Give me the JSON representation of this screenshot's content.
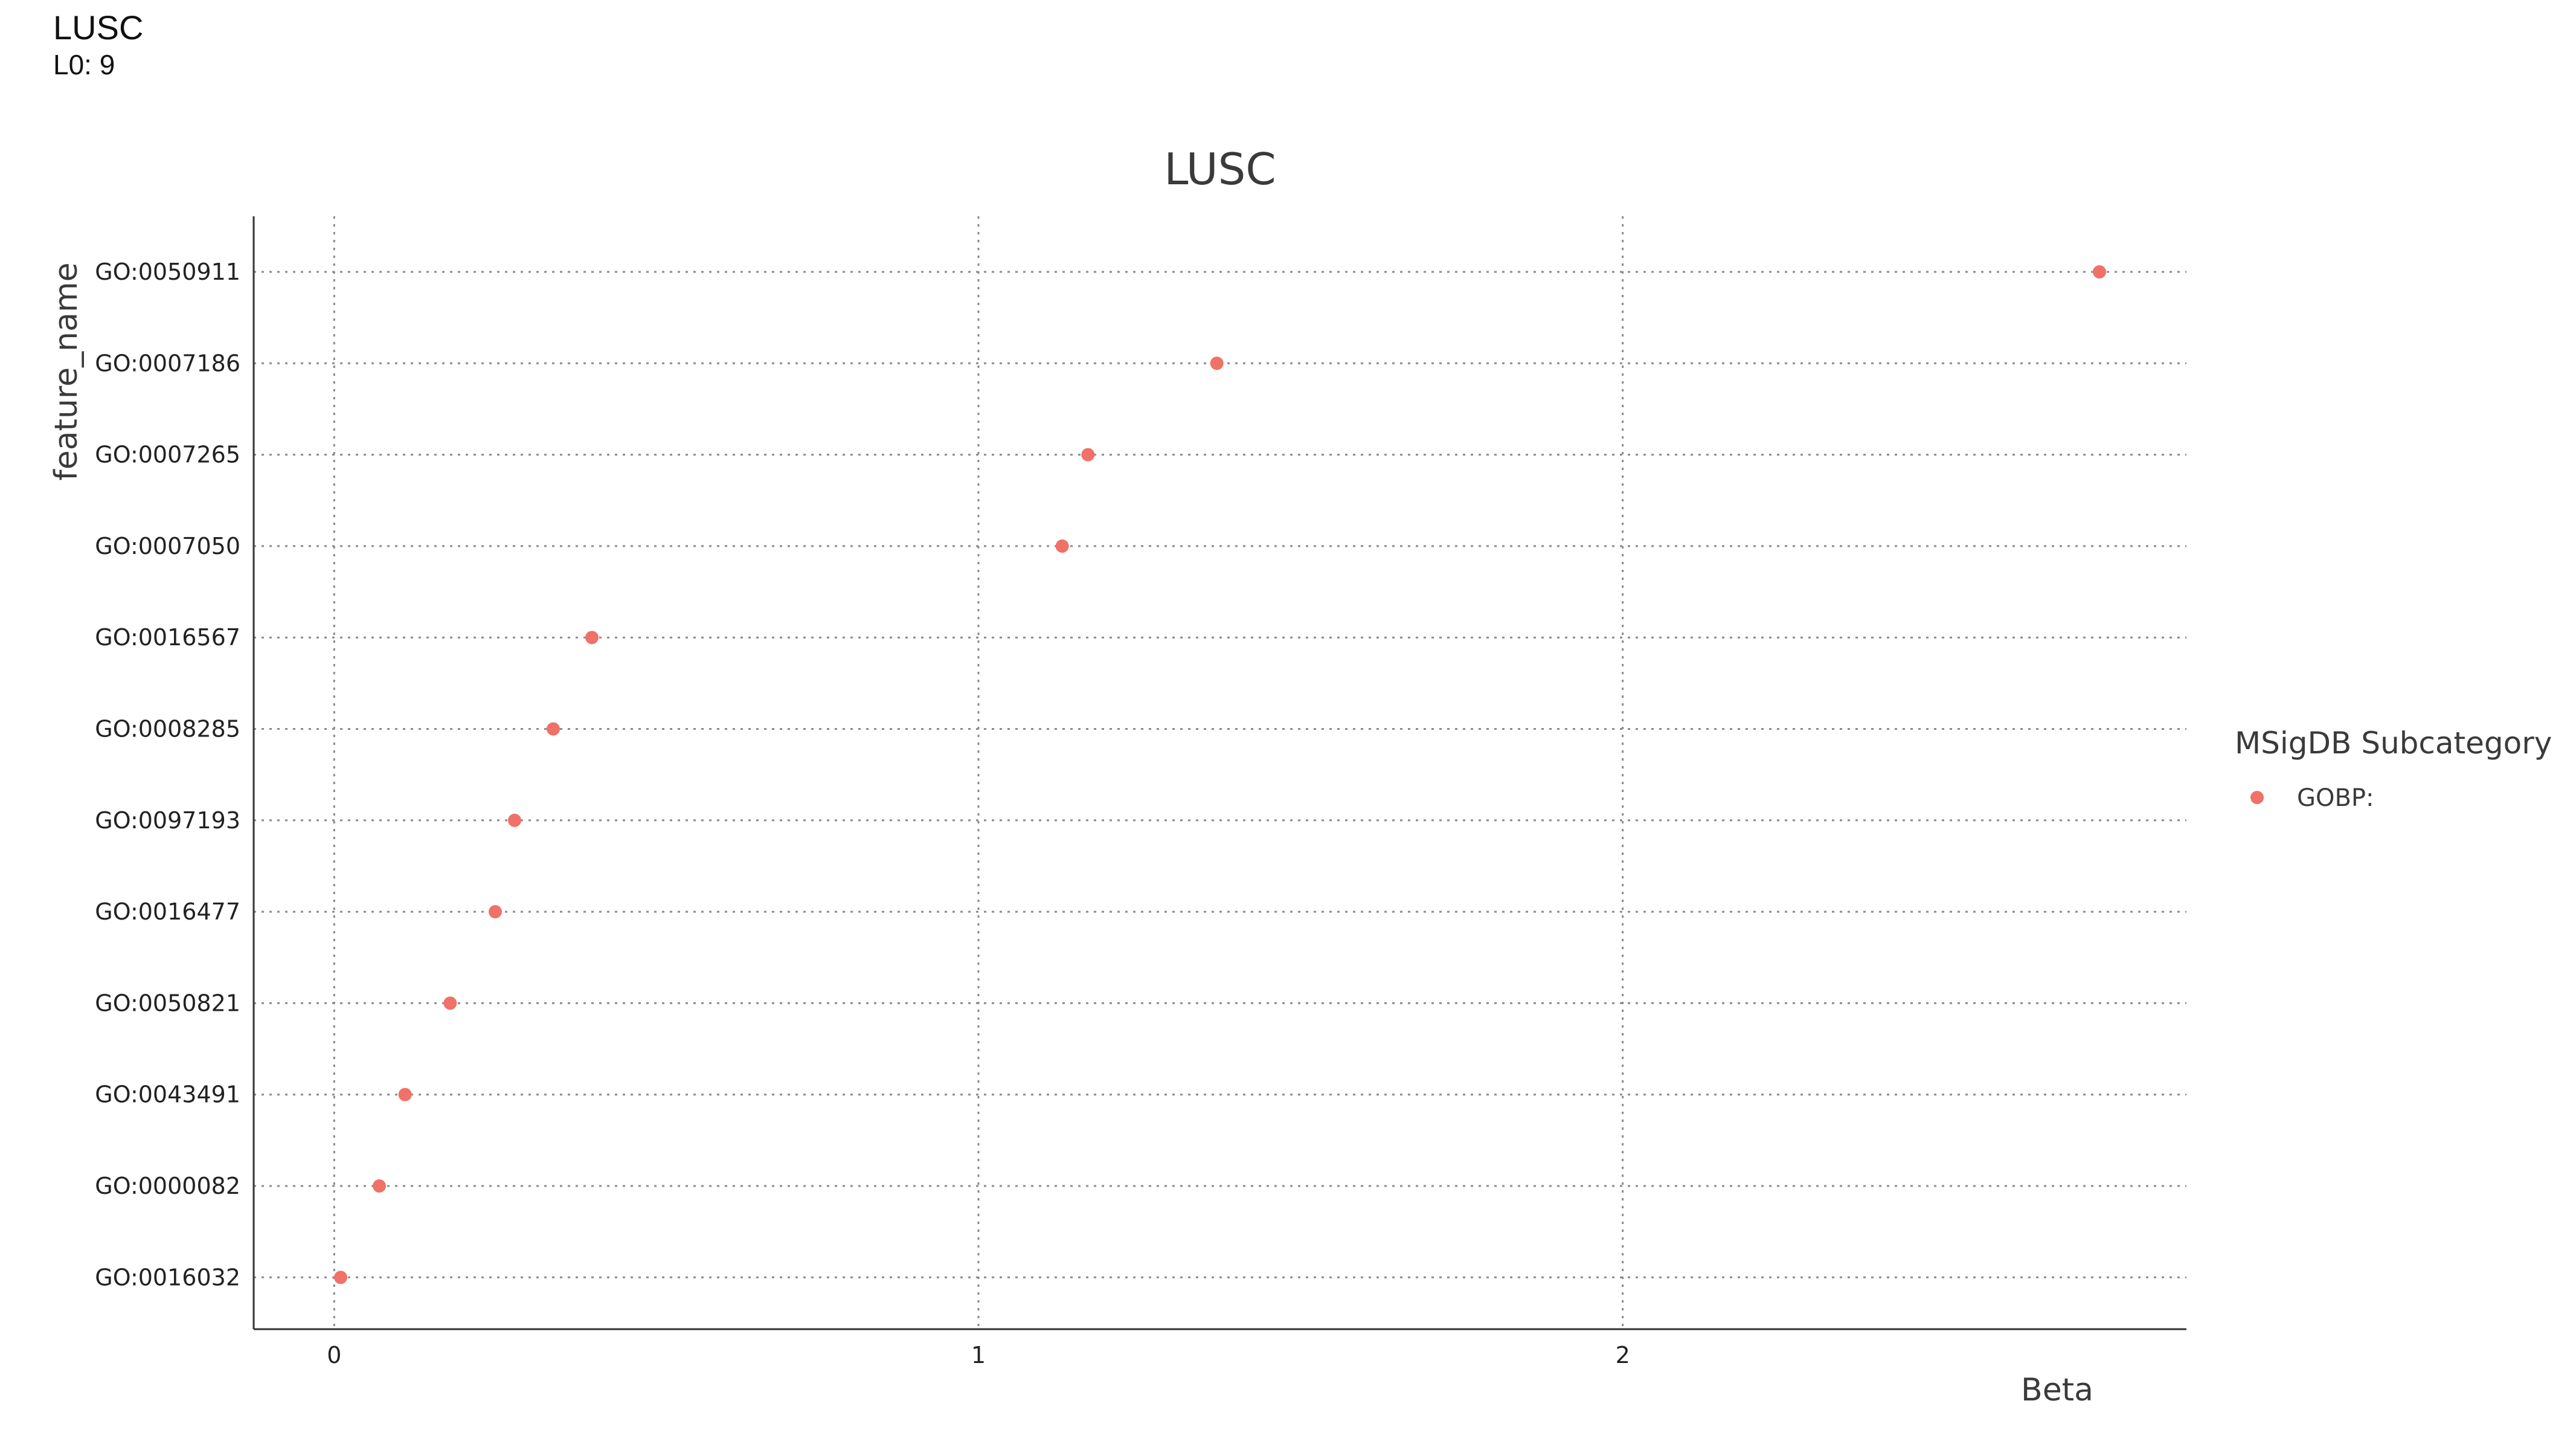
{
  "page": {
    "title": "LUSC",
    "subtitle": "L0: 9"
  },
  "chart_data": {
    "type": "scatter",
    "title": "LUSC",
    "xlabel": "Beta",
    "ylabel": "feature_name",
    "xlim": [
      -0.125,
      2.875
    ],
    "xticks": [
      0,
      1,
      2
    ],
    "xtick_labels": [
      "0",
      "1",
      "2"
    ],
    "grid": true,
    "categories": [
      "GO:0050911",
      "GO:0007186",
      "GO:0007265",
      "GO:0007050",
      "GO:0016567",
      "GO:0008285",
      "GO:0097193",
      "GO:0016477",
      "GO:0050821",
      "GO:0043491",
      "GO:0000082",
      "GO:0016032"
    ],
    "series": [
      {
        "name": "GOBP:",
        "color": "#f07167",
        "values": [
          2.74,
          1.37,
          1.17,
          1.13,
          0.4,
          0.34,
          0.28,
          0.25,
          0.18,
          0.11,
          0.07,
          0.01
        ]
      }
    ],
    "legend": {
      "title": "MSigDB Subcategory",
      "position": "right"
    }
  }
}
